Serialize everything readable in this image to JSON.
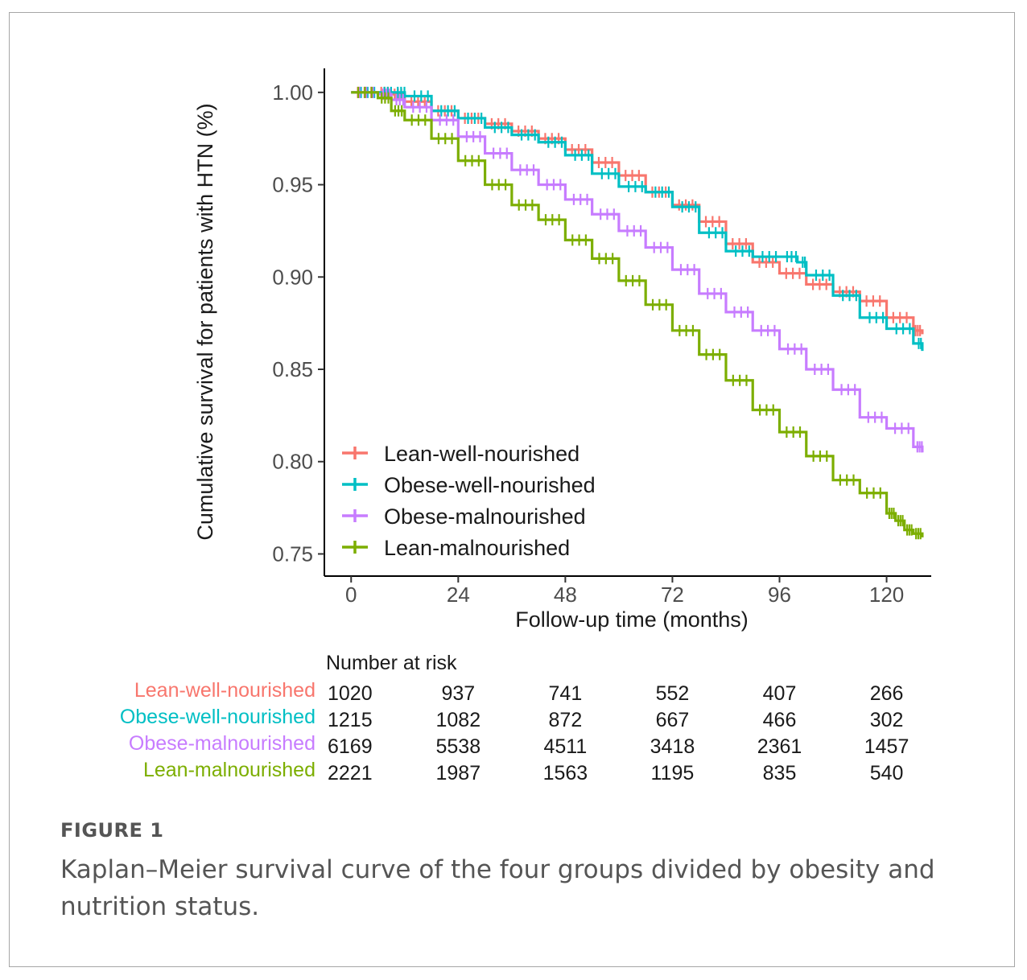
{
  "figure": {
    "label": "FIGURE 1",
    "caption": "Kaplan–Meier survival curve of the four groups divided by obesity and nutrition status."
  },
  "chart_data": {
    "type": "line",
    "subtype": "kaplan-meier step",
    "xlabel": "Follow-up time (months)",
    "ylabel": "Cumulative survival for patients with HTN (%)",
    "xlim": [
      -6,
      130
    ],
    "ylim": [
      0.738,
      1.013
    ],
    "xticks": [
      0,
      24,
      48,
      72,
      96,
      120
    ],
    "yticks": [
      "1.00",
      "0.95",
      "0.90",
      "0.85",
      "0.80",
      "0.75"
    ],
    "legend_position": "bottom-left (inside plot)",
    "grid": false,
    "series": [
      {
        "name": "Lean-well-nourished",
        "color": "#F8766D",
        "x": [
          0,
          6,
          9,
          12,
          18,
          24,
          30,
          36,
          42,
          48,
          54,
          60,
          66,
          72,
          78,
          84,
          90,
          96,
          102,
          108,
          114,
          120,
          126,
          128
        ],
        "y": [
          1.0,
          1.0,
          0.999,
          0.995,
          0.99,
          0.986,
          0.983,
          0.979,
          0.975,
          0.969,
          0.962,
          0.955,
          0.946,
          0.939,
          0.93,
          0.918,
          0.908,
          0.902,
          0.896,
          0.892,
          0.887,
          0.878,
          0.871,
          0.869
        ]
      },
      {
        "name": "Obese-well-nourished",
        "color": "#00BFC4",
        "x": [
          0,
          6,
          9,
          12,
          18,
          24,
          30,
          36,
          42,
          48,
          54,
          60,
          66,
          72,
          78,
          84,
          90,
          96,
          100,
          102,
          108,
          114,
          120,
          126,
          128
        ],
        "y": [
          1.0,
          1.0,
          1.0,
          0.998,
          0.99,
          0.986,
          0.981,
          0.977,
          0.973,
          0.966,
          0.956,
          0.949,
          0.946,
          0.938,
          0.924,
          0.914,
          0.911,
          0.911,
          0.908,
          0.901,
          0.89,
          0.878,
          0.872,
          0.864,
          0.86
        ]
      },
      {
        "name": "Obese-malnourished",
        "color": "#C77CFF",
        "x": [
          0,
          6,
          9,
          12,
          18,
          24,
          30,
          36,
          42,
          48,
          54,
          60,
          66,
          72,
          78,
          84,
          90,
          96,
          102,
          108,
          114,
          120,
          126,
          128
        ],
        "y": [
          1.0,
          0.999,
          0.996,
          0.992,
          0.985,
          0.976,
          0.967,
          0.958,
          0.95,
          0.942,
          0.934,
          0.925,
          0.916,
          0.904,
          0.891,
          0.881,
          0.871,
          0.861,
          0.85,
          0.839,
          0.824,
          0.818,
          0.808,
          0.805
        ]
      },
      {
        "name": "Lean-malnourished",
        "color": "#7CAE00",
        "x": [
          0,
          6,
          9,
          12,
          18,
          24,
          30,
          36,
          42,
          48,
          54,
          60,
          66,
          72,
          78,
          84,
          90,
          96,
          102,
          108,
          114,
          120,
          122,
          124,
          126,
          128
        ],
        "y": [
          1.0,
          0.997,
          0.99,
          0.985,
          0.975,
          0.963,
          0.95,
          0.939,
          0.931,
          0.92,
          0.91,
          0.898,
          0.885,
          0.871,
          0.858,
          0.844,
          0.828,
          0.816,
          0.803,
          0.79,
          0.783,
          0.772,
          0.768,
          0.763,
          0.761,
          0.759
        ]
      }
    ]
  },
  "risk_table": {
    "title": "Number at risk",
    "times": [
      0,
      24,
      48,
      72,
      96,
      120
    ],
    "rows": [
      {
        "name": "Lean-well-nourished",
        "color": "#F8766D",
        "values": [
          "1020",
          "937",
          "741",
          "552",
          "407",
          "266"
        ]
      },
      {
        "name": "Obese-well-nourished",
        "color": "#00BFC4",
        "values": [
          "1215",
          "1082",
          "872",
          "667",
          "466",
          "302"
        ]
      },
      {
        "name": "Obese-malnourished",
        "color": "#C77CFF",
        "values": [
          "6169",
          "5538",
          "4511",
          "3418",
          "2361",
          "1457"
        ]
      },
      {
        "name": "Lean-malnourished",
        "color": "#7CAE00",
        "values": [
          "2221",
          "1987",
          "1563",
          "1195",
          "835",
          "540"
        ]
      }
    ]
  }
}
